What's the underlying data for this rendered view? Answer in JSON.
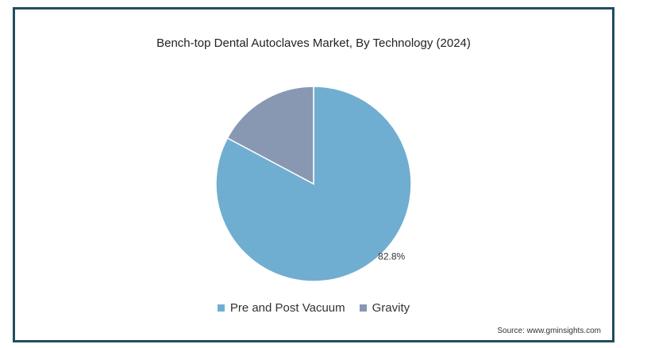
{
  "chart_data": {
    "type": "pie",
    "title": "Bench-top Dental Autoclaves Market, By Technology (2024)",
    "slices": [
      {
        "label": "Pre and Post Vacuum",
        "value": 82.8,
        "color": "#70aed1",
        "data_label": "82.8%"
      },
      {
        "label": "Gravity",
        "value": 17.2,
        "color": "#8898b2",
        "data_label": ""
      }
    ],
    "legend_position": "bottom",
    "source": "Source: www.gminsights.com"
  }
}
